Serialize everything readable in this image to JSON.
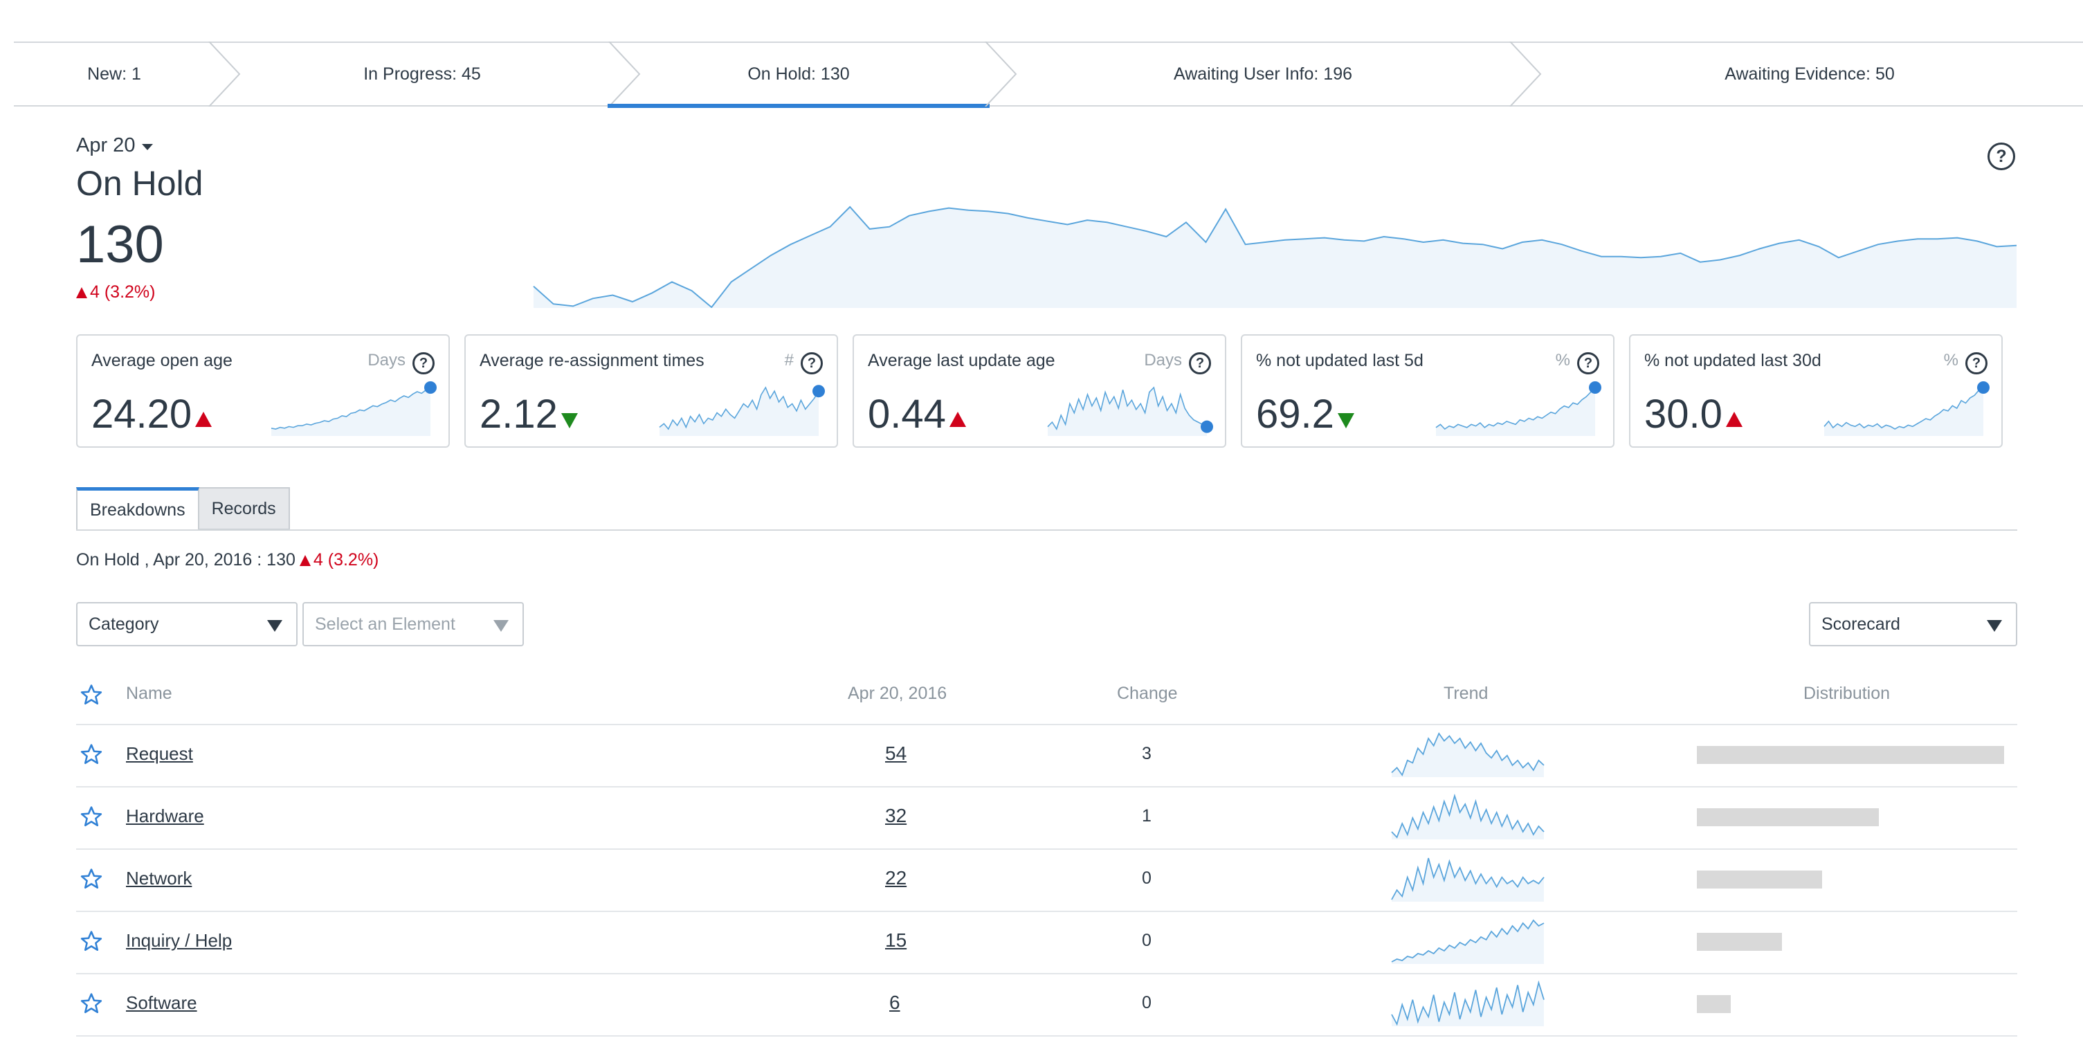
{
  "stages": [
    {
      "label": "New: 1"
    },
    {
      "label": "In Progress: 45"
    },
    {
      "label": "On Hold: 130",
      "active": true
    },
    {
      "label": "Awaiting User Info: 196"
    },
    {
      "label": "Awaiting Evidence: 50"
    }
  ],
  "header": {
    "date": "Apr 20",
    "title": "On Hold",
    "value": "130",
    "delta": "4 (3.2%)",
    "help_icon": "question-circle-icon"
  },
  "main_trend": [
    58,
    42,
    40,
    47,
    50,
    44,
    52,
    62,
    54,
    39,
    62,
    74,
    86,
    96,
    104,
    112,
    130,
    110,
    112,
    122,
    126,
    129,
    127,
    126,
    124,
    120,
    117,
    114,
    118,
    116,
    112,
    108,
    103,
    116,
    98,
    128,
    96,
    98,
    100,
    101,
    102,
    100,
    99,
    103,
    101,
    98,
    100,
    97,
    96,
    92,
    98,
    100,
    96,
    90,
    85,
    85,
    84,
    85,
    88,
    80,
    82,
    86,
    92,
    97,
    100,
    94,
    84,
    90,
    96,
    99,
    101,
    101,
    102,
    99,
    94,
    95
  ],
  "cards": [
    {
      "label": "Average open age",
      "unit": "Days",
      "value": "24.20",
      "direction": "up",
      "spark": [
        6,
        5,
        7,
        6,
        8,
        7,
        9,
        9,
        11,
        10,
        12,
        13,
        15,
        14,
        17,
        18,
        21,
        20,
        24,
        25,
        28,
        27,
        30,
        33,
        32,
        35,
        37,
        40,
        38,
        42,
        45,
        43,
        47,
        50,
        48,
        52,
        55
      ]
    },
    {
      "label": "Average re-assignment times",
      "unit": "#",
      "value": "2.12",
      "direction": "down",
      "spark": [
        20,
        22,
        19,
        24,
        21,
        25,
        20,
        26,
        23,
        27,
        22,
        25,
        24,
        28,
        26,
        30,
        27,
        25,
        29,
        33,
        31,
        35,
        30,
        38,
        42,
        36,
        40,
        34,
        37,
        31,
        33,
        29,
        35,
        30,
        33,
        36,
        40
      ]
    },
    {
      "label": "Average last update age",
      "unit": "Days",
      "value": "0.44",
      "direction": "up",
      "spark": [
        10,
        14,
        8,
        20,
        12,
        30,
        22,
        34,
        25,
        38,
        28,
        35,
        24,
        40,
        30,
        36,
        26,
        42,
        28,
        33,
        25,
        30,
        22,
        40,
        44,
        28,
        36,
        24,
        30,
        22,
        38,
        26,
        20,
        16,
        14,
        12,
        10
      ]
    },
    {
      "label": "% not updated last 5d",
      "unit": "%",
      "value": "69.2",
      "direction": "down",
      "spark": [
        22,
        24,
        21,
        23,
        22,
        24,
        23,
        22,
        24,
        23,
        25,
        22,
        24,
        23,
        25,
        24,
        26,
        25,
        24,
        27,
        26,
        28,
        27,
        29,
        28,
        30,
        32,
        31,
        34,
        36,
        35,
        38,
        37,
        40,
        42,
        45,
        48
      ]
    },
    {
      "label": "% not updated last 30d",
      "unit": "%",
      "value": "30.0",
      "direction": "up",
      "spark": [
        20,
        24,
        19,
        22,
        20,
        23,
        21,
        20,
        22,
        19,
        21,
        20,
        22,
        19,
        21,
        20,
        18,
        20,
        19,
        21,
        20,
        22,
        24,
        26,
        25,
        28,
        30,
        33,
        32,
        36,
        34,
        40,
        38,
        42,
        44,
        48,
        50
      ]
    }
  ],
  "tabs": [
    {
      "label": "Breakdowns",
      "active": true
    },
    {
      "label": "Records"
    }
  ],
  "summary": {
    "text": "On Hold , Apr 20, 2016 : 130",
    "delta": "4 (3.2%)"
  },
  "filters": {
    "category": "Category",
    "element_placeholder": "Select an Element",
    "view": "Scorecard"
  },
  "table": {
    "headers": {
      "name": "Name",
      "date": "Apr 20, 2016",
      "change": "Change",
      "trend": "Trend",
      "distribution": "Distribution"
    },
    "rows": [
      {
        "name": "Request",
        "value": "54",
        "change": "3",
        "distribution": 54,
        "trend": [
          20,
          24,
          18,
          30,
          28,
          40,
          35,
          48,
          42,
          52,
          46,
          50,
          44,
          48,
          40,
          45,
          38,
          44,
          36,
          32,
          38,
          30,
          34,
          26,
          30,
          24,
          28,
          22,
          30,
          26
        ]
      },
      {
        "name": "Hardware",
        "value": "32",
        "change": "1",
        "distribution": 32,
        "trend": [
          22,
          18,
          28,
          20,
          32,
          24,
          36,
          28,
          40,
          30,
          44,
          34,
          48,
          36,
          42,
          32,
          44,
          30,
          38,
          28,
          36,
          26,
          34,
          24,
          30,
          22,
          28,
          20,
          26,
          22
        ]
      },
      {
        "name": "Network",
        "value": "22",
        "change": "0",
        "distribution": 22,
        "trend": [
          16,
          22,
          18,
          30,
          22,
          36,
          26,
          42,
          30,
          38,
          28,
          40,
          30,
          36,
          28,
          34,
          26,
          32,
          26,
          30,
          24,
          30,
          26,
          28,
          24,
          30,
          26,
          28,
          26,
          30
        ]
      },
      {
        "name": "Inquiry / Help",
        "value": "15",
        "change": "0",
        "distribution": 15,
        "trend": [
          14,
          16,
          15,
          18,
          17,
          20,
          19,
          22,
          20,
          24,
          22,
          26,
          24,
          28,
          26,
          30,
          28,
          32,
          30,
          36,
          32,
          38,
          34,
          40,
          36,
          42,
          38,
          44,
          40,
          42
        ]
      },
      {
        "name": "Software",
        "value": "6",
        "change": "0",
        "distribution": 6,
        "trend": [
          18,
          10,
          26,
          14,
          30,
          12,
          24,
          16,
          34,
          12,
          28,
          18,
          36,
          14,
          30,
          20,
          38,
          16,
          32,
          22,
          40,
          18,
          34,
          24,
          42,
          20,
          36,
          26,
          44,
          30
        ]
      }
    ]
  },
  "colors": {
    "accent": "#2f80d5",
    "up": "#d0021b",
    "down": "#1e8a1e",
    "spark_line": "#5aa5dc",
    "spark_fill": "#eef5fb",
    "dist_bar": "#d9d9d9"
  }
}
